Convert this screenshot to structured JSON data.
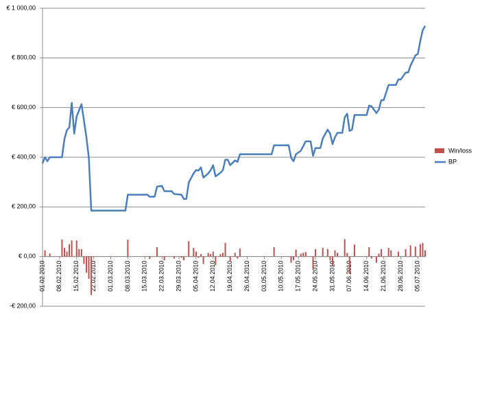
{
  "chart_data": {
    "type": "combo",
    "ylim": [
      -200,
      1000
    ],
    "yticks": [
      {
        "value": -200,
        "label": "-€ 200,00"
      },
      {
        "value": 0,
        "label": "€ 0,00"
      },
      {
        "value": 200,
        "label": "€ 200,00"
      },
      {
        "value": 400,
        "label": "€ 400,00"
      },
      {
        "value": 600,
        "label": "€ 600,00"
      },
      {
        "value": 800,
        "label": "€ 800,00"
      },
      {
        "value": 1000,
        "label": "€ 1 000,00"
      }
    ],
    "xlim": [
      0,
      157
    ],
    "xticks": [
      {
        "value": 0,
        "label": "01.02.2010"
      },
      {
        "value": 7,
        "label": "08.02.2010"
      },
      {
        "value": 14,
        "label": "15.02.2010"
      },
      {
        "value": 21,
        "label": "22.02.2010"
      },
      {
        "value": 28,
        "label": "01.03.2010"
      },
      {
        "value": 35,
        "label": "08.03.2010"
      },
      {
        "value": 42,
        "label": "15.03.2010"
      },
      {
        "value": 49,
        "label": "22.03.2010"
      },
      {
        "value": 56,
        "label": "29.03.2010"
      },
      {
        "value": 63,
        "label": "05.04.2010"
      },
      {
        "value": 70,
        "label": "12.04.2010"
      },
      {
        "value": 77,
        "label": "19.04.2010"
      },
      {
        "value": 84,
        "label": "26.04.2010"
      },
      {
        "value": 91,
        "label": "03.05.2010"
      },
      {
        "value": 98,
        "label": "10.05.2010"
      },
      {
        "value": 105,
        "label": "17.05.2010"
      },
      {
        "value": 112,
        "label": "24.05.2010"
      },
      {
        "value": 119,
        "label": "31.05.2010"
      },
      {
        "value": 126,
        "label": "07.06.2010"
      },
      {
        "value": 133,
        "label": "14.06.2010"
      },
      {
        "value": 140,
        "label": "21.06.2010"
      },
      {
        "value": 147,
        "label": "28.06.2010"
      },
      {
        "value": 154,
        "label": "05.07.2010"
      }
    ],
    "grid": true,
    "legend": "right",
    "series": [
      {
        "name": "Win/loss",
        "type": "bar",
        "color": "#c0504d",
        "x": [
          1,
          3,
          8,
          9,
          10,
          11,
          12,
          14,
          15,
          16,
          17,
          18,
          19,
          20,
          35,
          44,
          47,
          50,
          54,
          57,
          58,
          60,
          62,
          63,
          64,
          65,
          66,
          68,
          69,
          70,
          71,
          73,
          74,
          75,
          77,
          79,
          80,
          81,
          95,
          102,
          103,
          104,
          106,
          107,
          108,
          111,
          112,
          115,
          117,
          118,
          119,
          120,
          121,
          124,
          125,
          126,
          128,
          134,
          135,
          137,
          138,
          139,
          142,
          143,
          146,
          149,
          151,
          153,
          155,
          156,
          157
        ],
        "values": [
          25,
          12,
          69,
          35,
          20,
          50,
          65,
          65,
          30,
          30,
          -30,
          -65,
          -90,
          -155,
          68,
          -10,
          38,
          -15,
          -8,
          -5,
          -15,
          62,
          35,
          20,
          -5,
          10,
          -30,
          15,
          10,
          20,
          -35,
          10,
          15,
          55,
          -20,
          15,
          -8,
          32,
          38,
          -25,
          -15,
          28,
          12,
          15,
          18,
          -50,
          30,
          35,
          30,
          -15,
          -40,
          25,
          15,
          70,
          15,
          -70,
          48,
          38,
          -8,
          -25,
          12,
          30,
          35,
          25,
          20,
          30,
          45,
          40,
          50,
          55,
          25
        ]
      },
      {
        "name": "BP",
        "type": "line",
        "color": "#4a7ebb",
        "x": [
          0,
          1,
          2,
          3,
          8,
          9,
          10,
          11,
          12,
          13,
          14,
          16,
          18,
          19,
          20,
          34,
          35,
          43,
          44,
          46,
          47,
          49,
          50,
          53,
          54,
          57,
          58,
          59,
          60,
          62,
          63,
          64,
          65,
          66,
          68,
          69,
          70,
          71,
          73,
          74,
          75,
          76,
          77,
          79,
          80,
          81,
          94,
          95,
          101,
          102,
          103,
          104,
          106,
          107,
          108,
          110,
          111,
          112,
          114,
          115,
          117,
          118,
          119,
          120,
          121,
          123,
          124,
          125,
          126,
          127,
          128,
          133,
          134,
          135,
          137,
          138,
          139,
          140,
          142,
          143,
          145,
          146,
          147,
          149,
          150,
          151,
          153,
          154,
          155,
          156,
          157
        ],
        "values": [
          375,
          400,
          384,
          400,
          400,
          473,
          509,
          520,
          619,
          495,
          564,
          614,
          481,
          398,
          185,
          185,
          249,
          249,
          241,
          241,
          282,
          285,
          263,
          263,
          252,
          249,
          232,
          232,
          298,
          335,
          348,
          346,
          359,
          318,
          335,
          348,
          368,
          323,
          337,
          348,
          390,
          390,
          368,
          387,
          381,
          412,
          412,
          448,
          448,
          398,
          384,
          412,
          426,
          445,
          464,
          464,
          406,
          437,
          437,
          476,
          511,
          495,
          453,
          481,
          498,
          498,
          561,
          575,
          506,
          511,
          570,
          570,
          608,
          605,
          578,
          592,
          630,
          630,
          691,
          691,
          691,
          713,
          713,
          741,
          741,
          769,
          810,
          816,
          868,
          912,
          929
        ]
      }
    ]
  }
}
